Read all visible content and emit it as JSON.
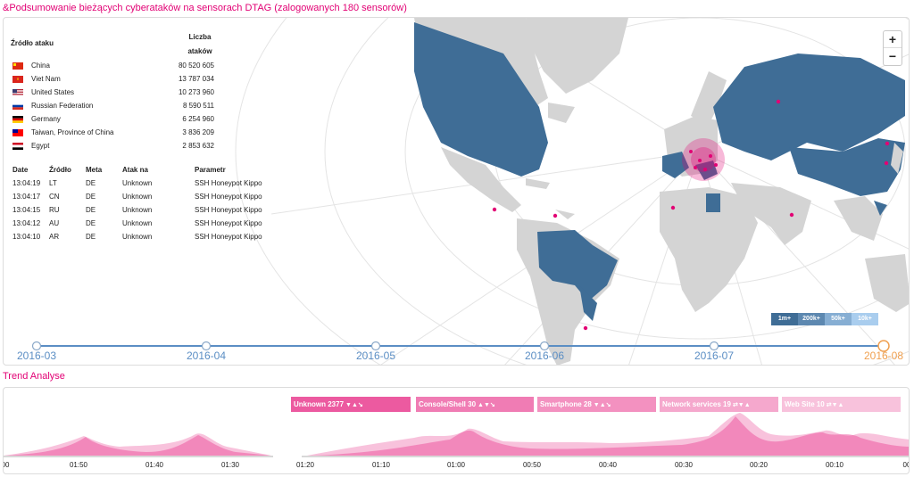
{
  "title": "&Podsumowanie bieżących cyberataków na sensorach DTAG (zalogowanych 180 sensorów)",
  "sources": {
    "header_source": "Źródło ataku",
    "header_count": "Liczba ataków",
    "rows": [
      {
        "country": "China",
        "count": "80 520 605",
        "flag": "china-flag"
      },
      {
        "country": "Viet Nam",
        "count": "13 787 034",
        "flag": "vietnam-flag"
      },
      {
        "country": "United States",
        "count": "10 273 960",
        "flag": "us-flag"
      },
      {
        "country": "Russian Federation",
        "count": "8 590 511",
        "flag": "russia-flag"
      },
      {
        "country": "Germany",
        "count": "6 254 960",
        "flag": "germany-flag"
      },
      {
        "country": "Taiwan, Province of China",
        "count": "3 836 209",
        "flag": "taiwan-flag"
      },
      {
        "country": "Egypt",
        "count": "2 853 632",
        "flag": "egypt-flag"
      }
    ]
  },
  "recent": {
    "headers": [
      "Date",
      "Źródło",
      "Meta",
      "Atak na",
      "Parametr"
    ],
    "rows": [
      [
        "13:04:19",
        "LT",
        "DE",
        "Unknown",
        "SSH Honeypot Kippo"
      ],
      [
        "13:04:17",
        "CN",
        "DE",
        "Unknown",
        "SSH Honeypot Kippo"
      ],
      [
        "13:04:15",
        "RU",
        "DE",
        "Unknown",
        "SSH Honeypot Kippo"
      ],
      [
        "13:04:12",
        "AU",
        "DE",
        "Unknown",
        "SSH Honeypot Kippo"
      ],
      [
        "13:04:10",
        "AR",
        "DE",
        "Unknown",
        "SSH Honeypot Kippo"
      ]
    ]
  },
  "zoom": {
    "in": "+",
    "out": "−"
  },
  "legend": [
    {
      "label": "1m+",
      "color": "#3f6d96"
    },
    {
      "label": "200k+",
      "color": "#5d88b0"
    },
    {
      "label": "50k+",
      "color": "#86aed3"
    },
    {
      "label": "10k+",
      "color": "#a9cdee"
    }
  ],
  "timeline": {
    "labels": [
      "2016-03",
      "2016-04",
      "2016-05",
      "2016-06",
      "2016-07",
      "2016-08"
    ],
    "active": "2016-08"
  },
  "trend": {
    "title": "Trend Analyse",
    "tags": [
      {
        "label": "Unknown 2377",
        "color": "#ec5aa0",
        "icons": "▼▲↘"
      },
      {
        "label": "Console/Shell 30",
        "color": "#f07cb4",
        "icons": "▲▼↘"
      },
      {
        "label": "Smartphone 28",
        "color": "#f391c0",
        "icons": "▼▲↘"
      },
      {
        "label": "Network services 19",
        "color": "#f5a8cd",
        "icons": "⇄▼▲"
      },
      {
        "label": "Web Site 10",
        "color": "#f8c2dc",
        "icons": "⇄▼▲"
      }
    ],
    "axis_left": [
      "00",
      "01:50",
      "01:40",
      "01:30"
    ],
    "axis_right": [
      "01:20",
      "01:10",
      "01:00",
      "00:50",
      "00:40",
      "00:30",
      "00:20",
      "00:10",
      "00"
    ]
  },
  "colors": {
    "brand": "#e20074",
    "attacked": "#3f6d96",
    "land": "#d4d4d4",
    "timeline": "#5b8ec4"
  }
}
